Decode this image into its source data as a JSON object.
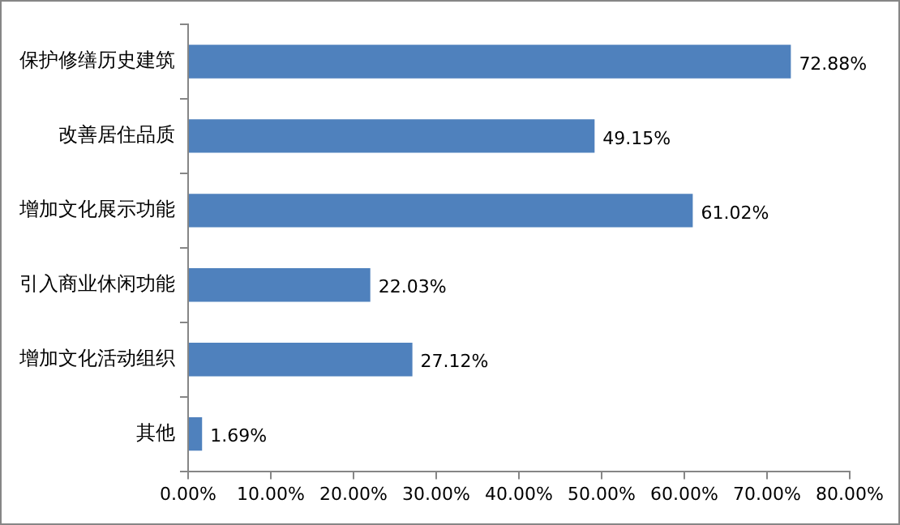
{
  "chart_data": {
    "type": "bar",
    "orientation": "horizontal",
    "categories": [
      "保护修缮历史建筑",
      "改善居住品质",
      "增加文化展示功能",
      "引入商业休闲功能",
      "增加文化活动组织",
      "其他"
    ],
    "values": [
      72.88,
      49.15,
      61.02,
      22.03,
      27.12,
      1.69
    ],
    "value_labels": [
      "72.88%",
      "49.15%",
      "61.02%",
      "22.03%",
      "27.12%",
      "1.69%"
    ],
    "color": "#4f81bd",
    "xlim": [
      0,
      80
    ],
    "xticks": [
      {
        "value": 0,
        "label": "0.00%"
      },
      {
        "value": 10,
        "label": "10.00%"
      },
      {
        "value": 20,
        "label": "20.00%"
      },
      {
        "value": 30,
        "label": "30.00%"
      },
      {
        "value": 40,
        "label": "40.00%"
      },
      {
        "value": 50,
        "label": "50.00%"
      },
      {
        "value": 60,
        "label": "60.00%"
      },
      {
        "value": 70,
        "label": "70.00%"
      },
      {
        "value": 80,
        "label": "80.00%"
      }
    ],
    "grid": false,
    "legend": false
  }
}
